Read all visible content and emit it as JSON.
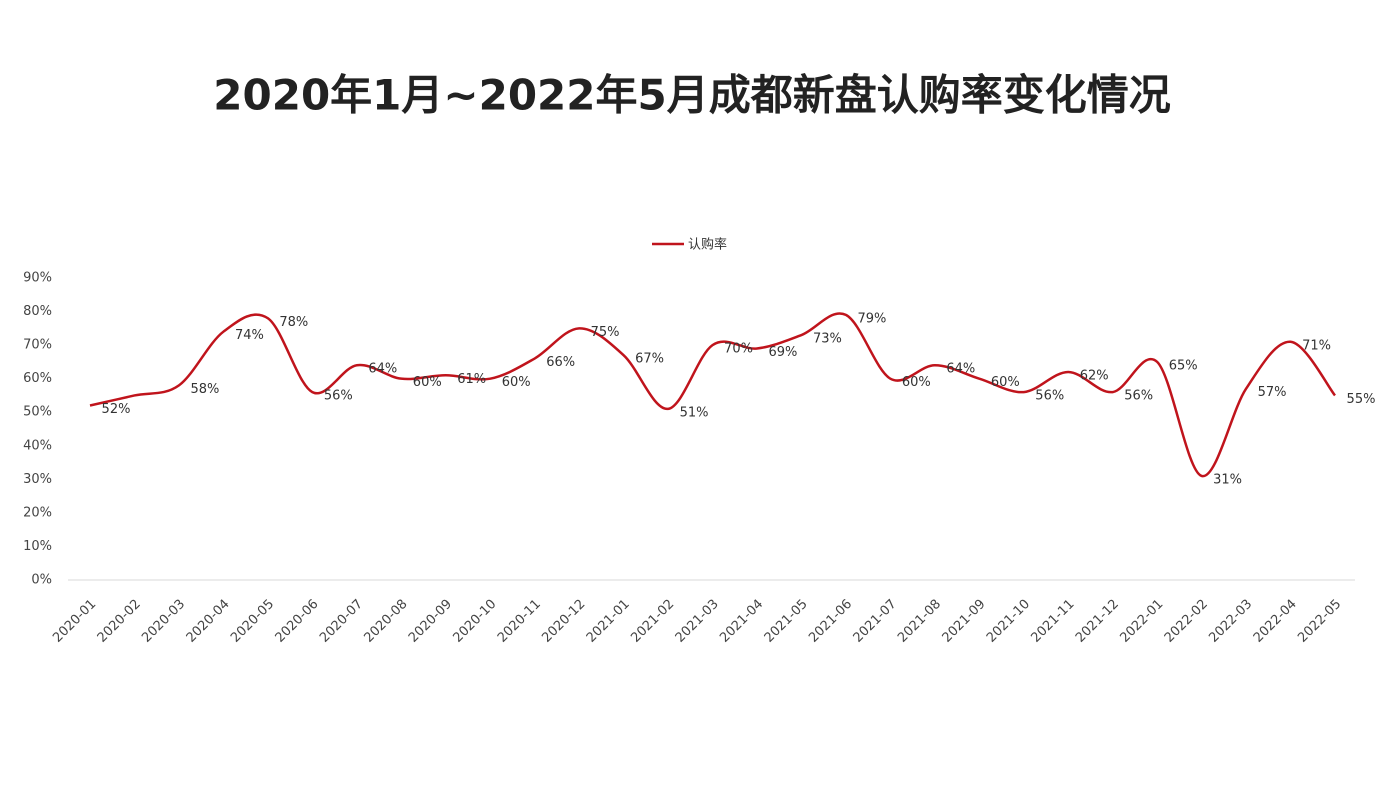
{
  "chart_data": {
    "type": "line",
    "title": "2020年1月~2022年5月成都新盘认购率变化情况",
    "categories": [
      "2020-01",
      "2020-02",
      "2020-03",
      "2020-04",
      "2020-05",
      "2020-06",
      "2020-07",
      "2020-08",
      "2020-09",
      "2020-10",
      "2020-11",
      "2020-12",
      "2021-01",
      "2021-02",
      "2021-03",
      "2021-04",
      "2021-05",
      "2021-06",
      "2021-07",
      "2021-08",
      "2021-09",
      "2021-10",
      "2021-11",
      "2021-12",
      "2022-01",
      "2022-02",
      "2022-03",
      "2022-04",
      "2022-05"
    ],
    "series": [
      {
        "name": "认购率",
        "color": "#c0141c",
        "values": [
          52,
          55,
          58,
          74,
          78,
          56,
          64,
          60,
          61,
          60,
          66,
          75,
          67,
          51,
          70,
          69,
          73,
          79,
          60,
          64,
          60,
          56,
          62,
          56,
          65,
          31,
          57,
          71,
          55
        ],
        "value_labels": [
          "52%",
          null,
          "58%",
          "74%",
          "78%",
          "56%",
          "64%",
          "60%",
          "61%",
          "60%",
          "66%",
          "75%",
          "67%",
          "51%",
          "70%",
          "69%",
          "73%",
          "79%",
          "60%",
          "64%",
          "60%",
          "56%",
          "62%",
          "56%",
          "65%",
          "31%",
          "57%",
          "71%",
          "55%"
        ]
      }
    ],
    "ylim": [
      0,
      90
    ],
    "yticks": [
      {
        "value": 0,
        "label": "0%"
      },
      {
        "value": 10,
        "label": "10%"
      },
      {
        "value": 20,
        "label": "20%"
      },
      {
        "value": 30,
        "label": "30%"
      },
      {
        "value": 40,
        "label": "40%"
      },
      {
        "value": 50,
        "label": "50%"
      },
      {
        "value": 60,
        "label": "60%"
      },
      {
        "value": 70,
        "label": "70%"
      },
      {
        "value": 80,
        "label": "80%"
      },
      {
        "value": 90,
        "label": "90%"
      }
    ],
    "legend": "top"
  }
}
